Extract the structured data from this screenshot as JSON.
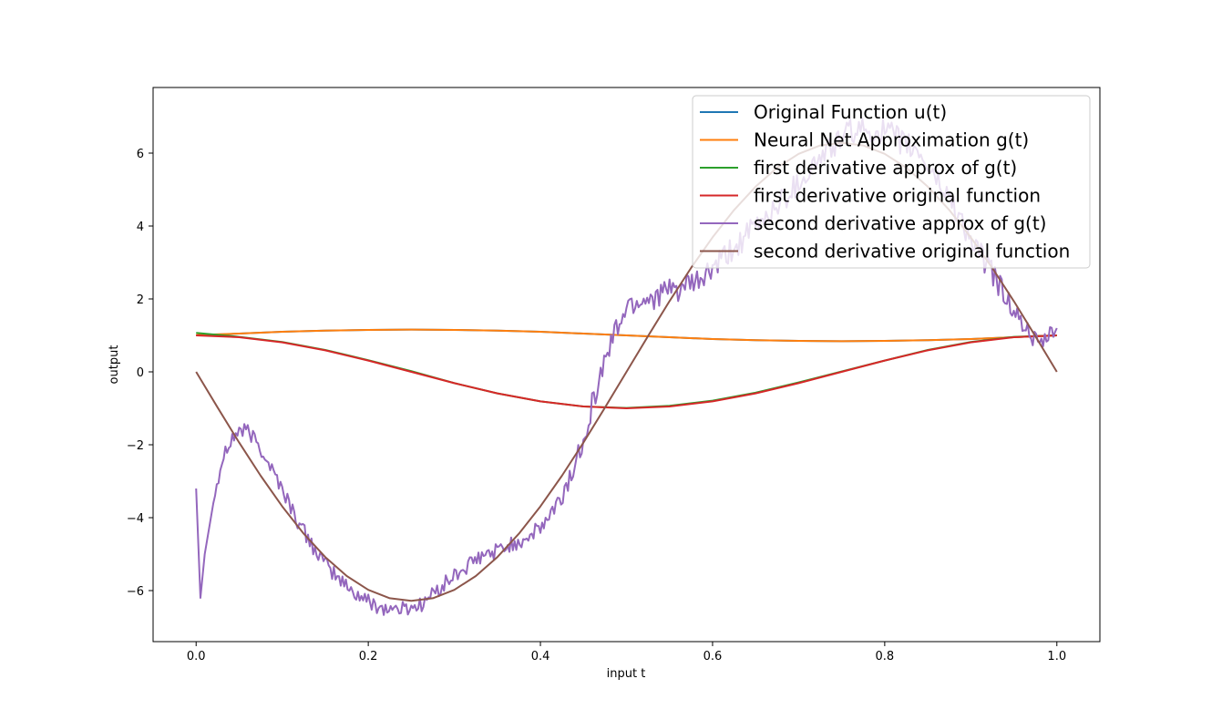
{
  "chart_data": {
    "type": "line",
    "title": "",
    "xlabel": "input t",
    "ylabel": "output",
    "xlim": [
      -0.05,
      1.05
    ],
    "ylim": [
      -7.4,
      7.8
    ],
    "x_ticks": [
      0.0,
      0.2,
      0.4,
      0.6,
      0.8,
      1.0
    ],
    "x_tick_labels": [
      "0.0",
      "0.2",
      "0.4",
      "0.6",
      "0.8",
      "1.0"
    ],
    "y_ticks": [
      -6,
      -4,
      -2,
      0,
      2,
      4,
      6
    ],
    "y_tick_labels": [
      "−6",
      "−4",
      "−2",
      "0",
      "2",
      "4",
      "6"
    ],
    "grid": false,
    "legend_position": "top-right",
    "series": [
      {
        "name": "Original Function u(t)",
        "color": "#1f77b4",
        "x": [
          0,
          0.05,
          0.1,
          0.15,
          0.2,
          0.25,
          0.3,
          0.35,
          0.4,
          0.45,
          0.5,
          0.55,
          0.6,
          0.65,
          0.7,
          0.75,
          0.8,
          0.85,
          0.9,
          0.95,
          1.0
        ],
        "y": [
          1.0,
          1.05,
          1.1,
          1.13,
          1.15,
          1.16,
          1.15,
          1.13,
          1.1,
          1.05,
          1.0,
          0.95,
          0.9,
          0.87,
          0.85,
          0.84,
          0.85,
          0.87,
          0.9,
          0.95,
          1.0
        ]
      },
      {
        "name": "Neural Net Approximation g(t)",
        "color": "#ff7f0e",
        "x": [
          0,
          0.05,
          0.1,
          0.15,
          0.2,
          0.25,
          0.3,
          0.35,
          0.4,
          0.45,
          0.5,
          0.55,
          0.6,
          0.65,
          0.7,
          0.75,
          0.8,
          0.85,
          0.9,
          0.95,
          1.0
        ],
        "y": [
          1.01,
          1.05,
          1.1,
          1.13,
          1.15,
          1.16,
          1.15,
          1.13,
          1.1,
          1.05,
          1.0,
          0.95,
          0.9,
          0.87,
          0.85,
          0.84,
          0.85,
          0.87,
          0.9,
          0.95,
          1.0
        ]
      },
      {
        "name": "first derivative approx of g(t)",
        "color": "#2ca02c",
        "x": [
          0,
          0.05,
          0.1,
          0.15,
          0.2,
          0.25,
          0.3,
          0.35,
          0.4,
          0.45,
          0.5,
          0.55,
          0.6,
          0.65,
          0.7,
          0.75,
          0.8,
          0.85,
          0.9,
          0.95,
          1.0
        ],
        "y": [
          1.07,
          0.96,
          0.82,
          0.6,
          0.32,
          0.02,
          -0.31,
          -0.59,
          -0.81,
          -0.95,
          -0.99,
          -0.93,
          -0.79,
          -0.57,
          -0.29,
          0.01,
          0.31,
          0.6,
          0.82,
          0.96,
          1.0
        ]
      },
      {
        "name": "first derivative original function",
        "color": "#d62728",
        "x": [
          0,
          0.05,
          0.1,
          0.15,
          0.2,
          0.25,
          0.3,
          0.35,
          0.4,
          0.45,
          0.5,
          0.55,
          0.6,
          0.65,
          0.7,
          0.75,
          0.8,
          0.85,
          0.9,
          0.95,
          1.0
        ],
        "y": [
          1.0,
          0.95,
          0.81,
          0.59,
          0.31,
          0.0,
          -0.31,
          -0.59,
          -0.81,
          -0.95,
          -1.0,
          -0.95,
          -0.81,
          -0.59,
          -0.31,
          0.0,
          0.31,
          0.59,
          0.81,
          0.95,
          1.0
        ]
      },
      {
        "name": "second derivative approx of g(t)",
        "color": "#9467bd",
        "noisy": true,
        "x": [
          0,
          0.005,
          0.01,
          0.02,
          0.03,
          0.04,
          0.05,
          0.06,
          0.07,
          0.08,
          0.1,
          0.12,
          0.15,
          0.18,
          0.2,
          0.22,
          0.24,
          0.26,
          0.28,
          0.3,
          0.33,
          0.36,
          0.38,
          0.4,
          0.42,
          0.44,
          0.46,
          0.48,
          0.5,
          0.52,
          0.55,
          0.58,
          0.6,
          0.63,
          0.66,
          0.7,
          0.73,
          0.76,
          0.8,
          0.84,
          0.88,
          0.9,
          0.92,
          0.94,
          0.96,
          0.98,
          1.0
        ],
        "y": [
          -3.2,
          -6.2,
          -5.0,
          -3.6,
          -2.5,
          -1.9,
          -1.6,
          -1.65,
          -1.9,
          -2.3,
          -3.2,
          -4.2,
          -5.3,
          -6.0,
          -6.3,
          -6.5,
          -6.5,
          -6.4,
          -6.0,
          -5.6,
          -5.1,
          -4.8,
          -4.6,
          -4.3,
          -3.7,
          -2.6,
          -0.9,
          0.7,
          1.8,
          2.0,
          2.2,
          2.4,
          2.8,
          3.5,
          4.2,
          5.2,
          6.0,
          6.6,
          6.6,
          6.0,
          4.6,
          3.6,
          2.9,
          2.1,
          1.3,
          0.7,
          1.2
        ]
      },
      {
        "name": "second derivative original function",
        "color": "#8c564b",
        "x": [
          0,
          0.025,
          0.05,
          0.075,
          0.1,
          0.125,
          0.15,
          0.175,
          0.2,
          0.225,
          0.25,
          0.275,
          0.3,
          0.325,
          0.35,
          0.375,
          0.4,
          0.425,
          0.45,
          0.475,
          0.5,
          0.525,
          0.55,
          0.575,
          0.6,
          0.625,
          0.65,
          0.675,
          0.7,
          0.725,
          0.75,
          0.775,
          0.8,
          0.825,
          0.85,
          0.875,
          0.9,
          0.925,
          0.95,
          0.975,
          1.0
        ],
        "y": [
          0,
          -0.98,
          -1.94,
          -2.85,
          -3.69,
          -4.44,
          -5.08,
          -5.6,
          -5.98,
          -6.21,
          -6.28,
          -6.21,
          -5.98,
          -5.6,
          -5.08,
          -4.44,
          -3.69,
          -2.85,
          -1.94,
          -0.98,
          0,
          0.98,
          1.94,
          2.85,
          3.69,
          4.44,
          5.08,
          5.6,
          5.98,
          6.21,
          6.28,
          6.21,
          5.98,
          5.6,
          5.08,
          4.44,
          3.69,
          2.85,
          1.94,
          0.98,
          0
        ]
      }
    ]
  }
}
